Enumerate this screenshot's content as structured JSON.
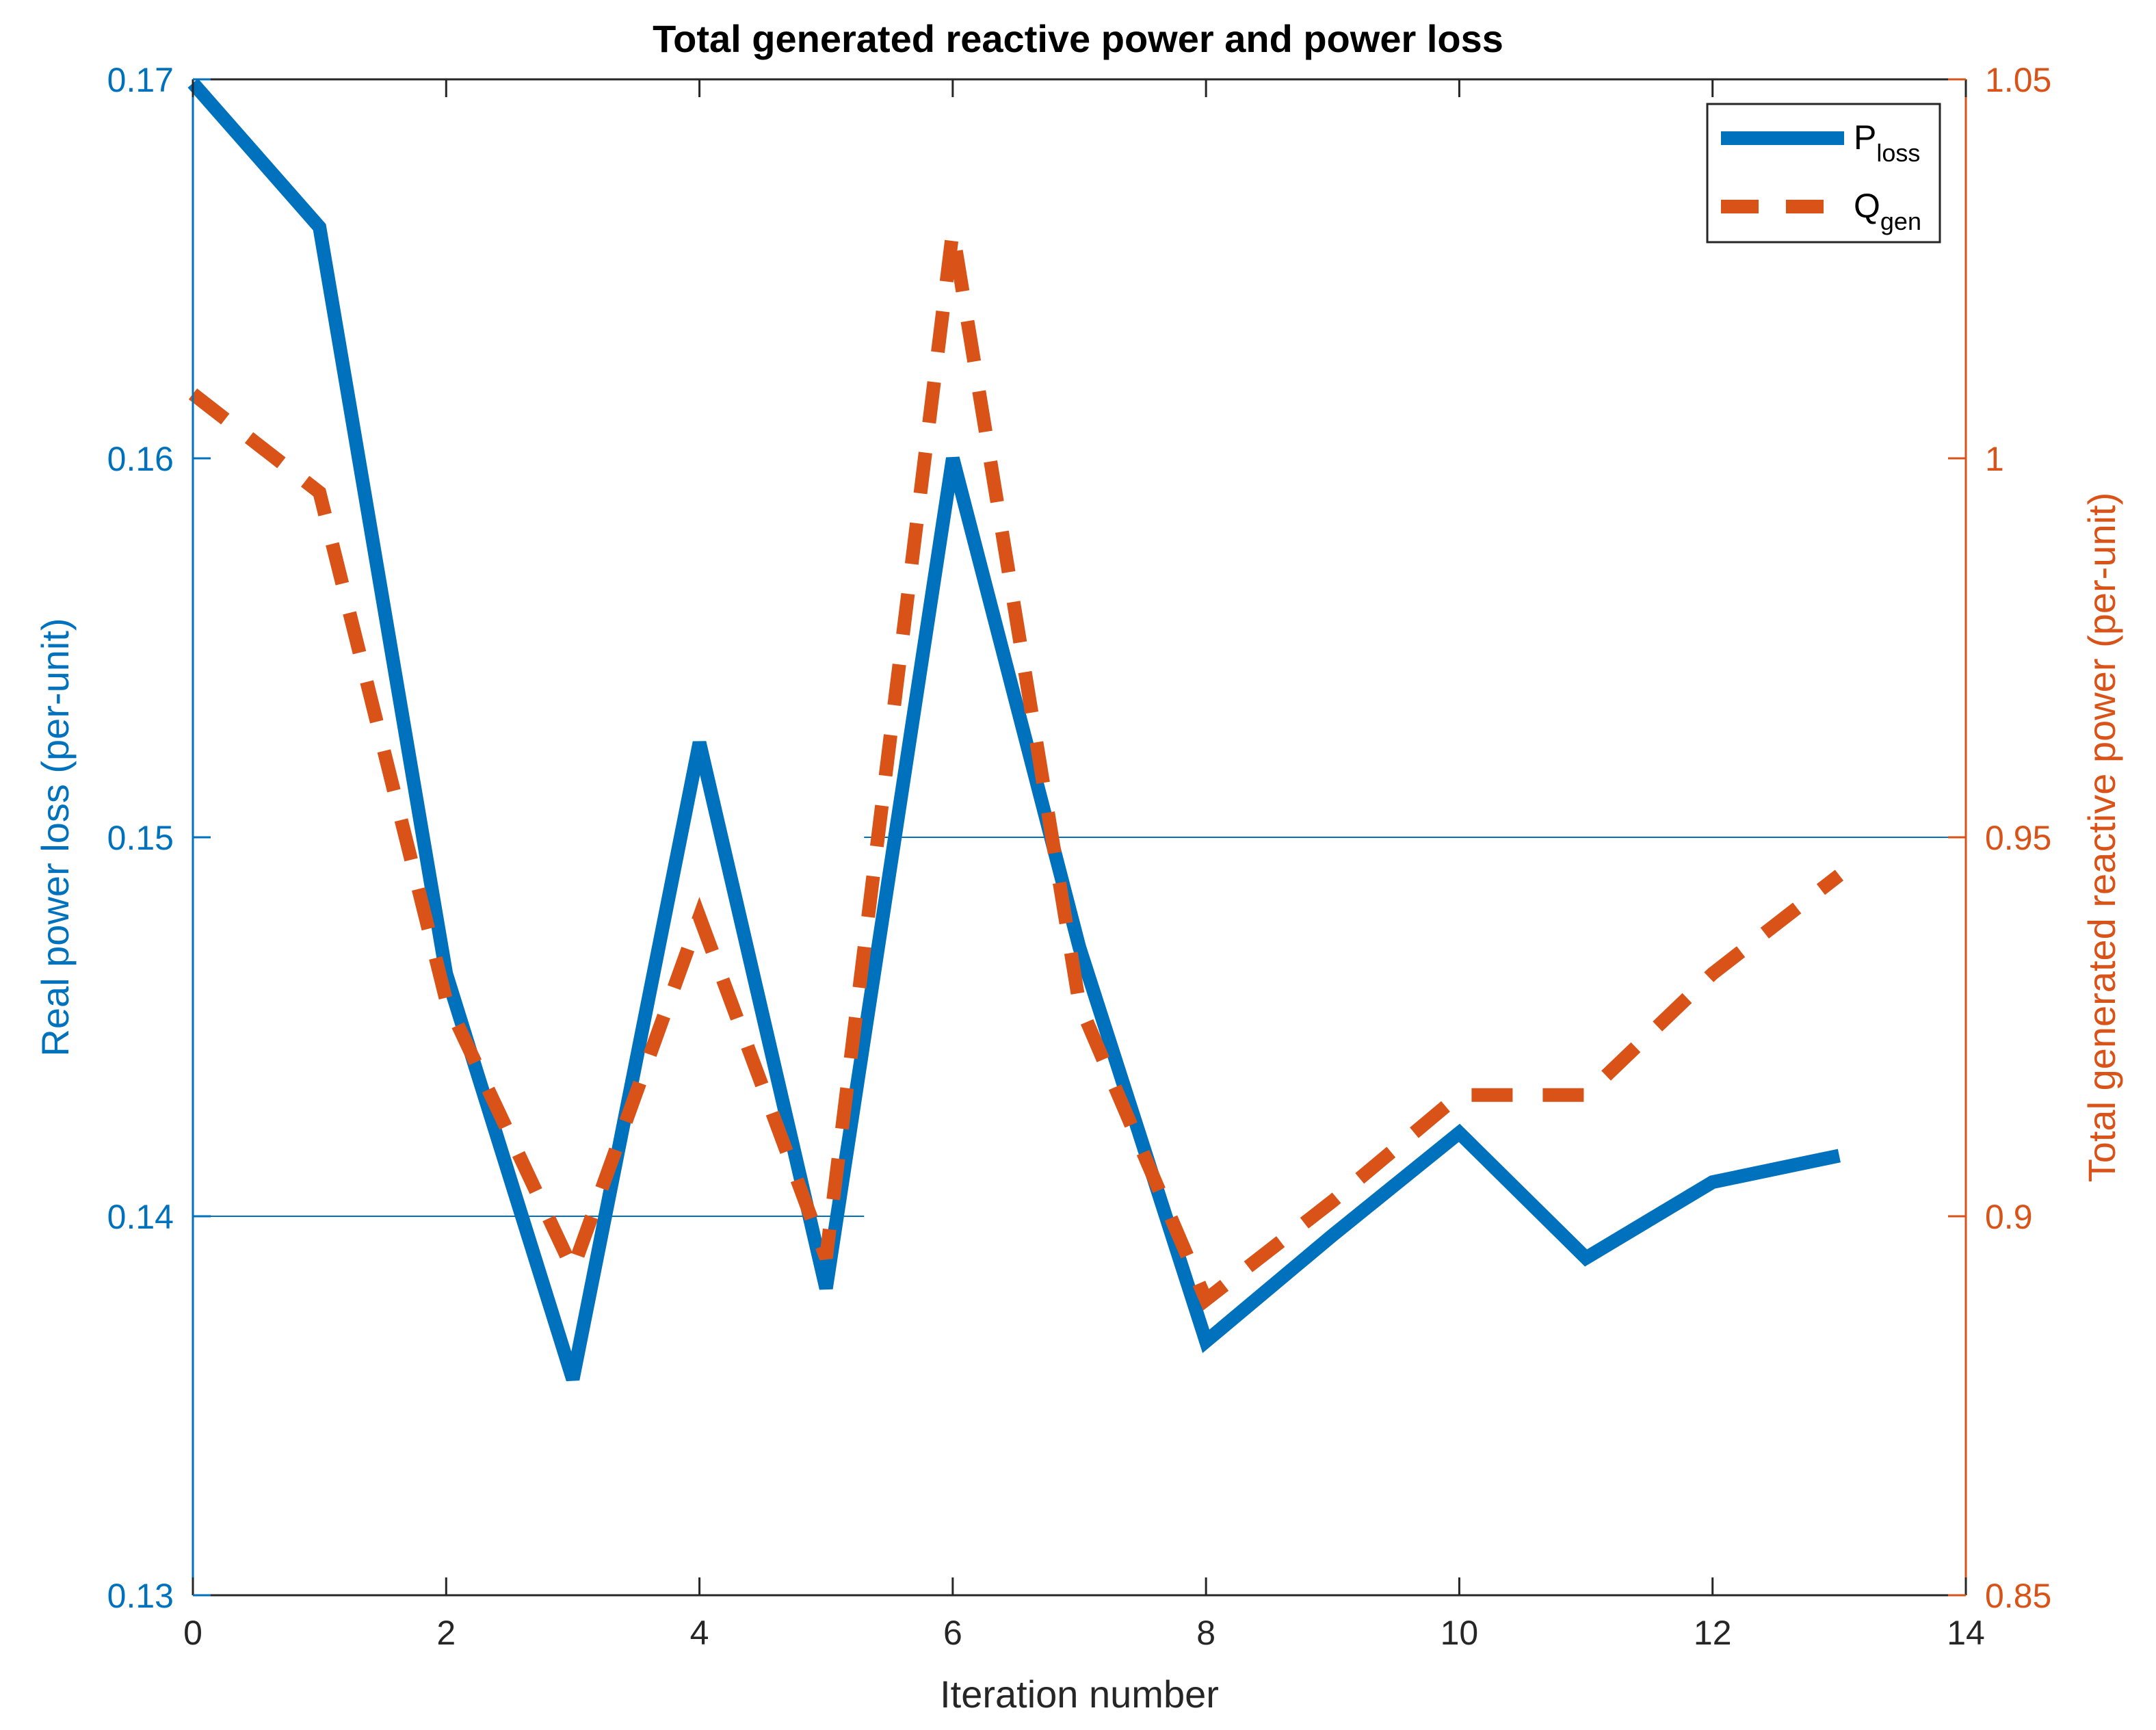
{
  "chart_data": {
    "type": "line",
    "title": "Total generated reactive power and power loss",
    "xlabel": "Iteration number",
    "ylabel_left": "Real power loss (per-unit)",
    "ylabel_right": "Total generated reactive power (per-unit)",
    "xlim": [
      0,
      14
    ],
    "ylim_left": [
      0.13,
      0.17
    ],
    "ylim_right": [
      0.85,
      1.05
    ],
    "x_ticks": [
      "0",
      "2",
      "4",
      "6",
      "8",
      "10",
      "12",
      "14"
    ],
    "y_left_ticks": [
      "0.13",
      "0.14",
      "0.15",
      "0.16",
      "0.17"
    ],
    "y_right_ticks": [
      "0.85",
      "0.9",
      "0.95",
      "1",
      "1.05"
    ],
    "series": [
      {
        "name": "P_loss",
        "legend_main": "P",
        "legend_sub": "loss",
        "axis": "left",
        "style": "solid",
        "color": "#0072BD",
        "x": [
          0,
          1,
          2,
          3,
          4,
          5,
          6,
          7,
          8,
          9,
          10,
          11,
          12,
          13
        ],
        "values": [
          0.1699,
          0.1661,
          0.1464,
          0.1357,
          0.1525,
          0.1381,
          0.16,
          0.1471,
          0.1367,
          0.1395,
          0.1422,
          0.1389,
          0.1409,
          0.1416
        ]
      },
      {
        "name": "Q_gen",
        "legend_main": "Q",
        "legend_sub": "gen",
        "axis": "right",
        "style": "dashed",
        "color": "#D95319",
        "x": [
          0,
          1,
          2,
          3,
          4,
          5,
          6,
          7,
          8,
          9,
          10,
          11,
          12,
          13
        ],
        "values": [
          1.0085,
          0.9955,
          0.9285,
          0.893,
          0.9395,
          0.8945,
          1.03,
          0.928,
          0.889,
          0.902,
          0.916,
          0.916,
          0.932,
          0.945
        ]
      }
    ],
    "reference_lines": [
      {
        "axis": "left",
        "y": 0.14,
        "x_from": 0,
        "x_to": 5.3,
        "color": "#0072BD"
      },
      {
        "axis": "left",
        "y": 0.15,
        "x_from": 5.3,
        "x_to": 14,
        "color": "#0072BD"
      }
    ],
    "legend_position": "top-right",
    "colors": {
      "left_axis": "#0072BD",
      "right_axis": "#D95319",
      "x_axis": "#262626"
    }
  }
}
